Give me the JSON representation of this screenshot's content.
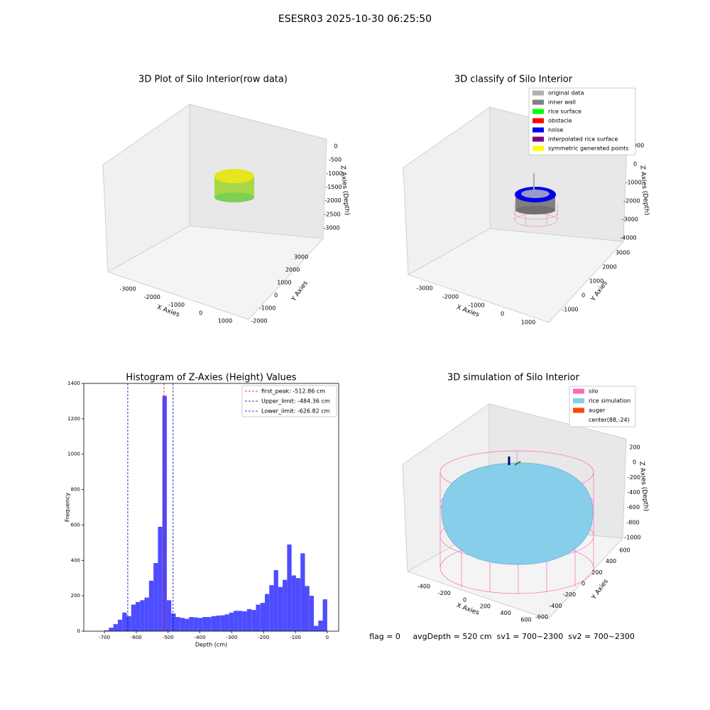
{
  "title": "ESESR03 2025-10-30 06:25:50",
  "chart_data": [
    {
      "type": "scatter3d",
      "title": "3D Plot of Silo Interior(row data)",
      "xlabel": "X Axies",
      "ylabel": "Y Axies",
      "zlabel": "Z Axies (Depth)",
      "xticks": [
        -3000,
        -2000,
        -1000,
        0,
        1000
      ],
      "yticks": [
        -2000,
        -1000,
        0,
        1000,
        2000,
        3000
      ],
      "zticks": [
        0,
        -500,
        -1000,
        -1500,
        -2000,
        -2500,
        -3000
      ]
    },
    {
      "type": "scatter3d",
      "title": "3D classify of Silo Interior",
      "xlabel": "X Axies",
      "ylabel": "Y Axies",
      "zlabel": "Z Axies (Depth)",
      "xticks": [
        -3000,
        -2000,
        -1000,
        0,
        1000
      ],
      "yticks": [
        -1000,
        0,
        1000,
        2000,
        3000
      ],
      "zticks": [
        1000,
        0,
        -1000,
        -2000,
        -3000,
        -4000
      ],
      "legend": [
        {
          "name": "original data",
          "color": "#b0b0b0"
        },
        {
          "name": "inner wall",
          "color": "#808080"
        },
        {
          "name": "rice surface",
          "color": "#00ff00"
        },
        {
          "name": "obstacle",
          "color": "#ff0000"
        },
        {
          "name": "noise",
          "color": "#0000ff"
        },
        {
          "name": "interpolated rice surface",
          "color": "#800080"
        },
        {
          "name": "symmetric generated points",
          "color": "#ffff00"
        }
      ]
    },
    {
      "type": "histogram",
      "title": "Histogram of Z-Axies (Height) Values",
      "xlabel": "Depth (cm)",
      "ylabel": "Frequency",
      "color": "#4d4dff",
      "bins": [
        -700,
        -686,
        -672,
        -658,
        -644,
        -630,
        -616,
        -602,
        -588,
        -574,
        -560,
        -546,
        -532,
        -518,
        -504,
        -490,
        -476,
        -462,
        -448,
        -434,
        -420,
        -406,
        -392,
        -378,
        -364,
        -350,
        -336,
        -322,
        -308,
        -294,
        -280,
        -266,
        -252,
        -238,
        -224,
        -210,
        -196,
        -182,
        -168,
        -154,
        -140,
        -126,
        -112,
        -98,
        -84,
        -70,
        -56,
        -42,
        -28,
        -14,
        0
      ],
      "values": [
        5,
        20,
        40,
        65,
        105,
        85,
        150,
        165,
        175,
        190,
        285,
        385,
        590,
        1330,
        175,
        100,
        80,
        75,
        70,
        80,
        78,
        75,
        80,
        80,
        85,
        88,
        90,
        95,
        105,
        115,
        115,
        112,
        125,
        120,
        150,
        160,
        210,
        260,
        345,
        250,
        290,
        490,
        315,
        300,
        440,
        255,
        200,
        30,
        60,
        180
      ],
      "xlim": [
        -765,
        36
      ],
      "ylim": [
        0,
        1400
      ],
      "xticks": [
        -700,
        -600,
        -500,
        -400,
        -300,
        -200,
        -100,
        0
      ],
      "yticks": [
        0,
        200,
        400,
        600,
        800,
        1000,
        1200,
        1400
      ],
      "vlines": [
        {
          "name": "first_peak: -512.86 cm",
          "value": -512.86,
          "color": "#ff0000"
        },
        {
          "name": "Upper_limit: -484.36 cm",
          "value": -484.36,
          "color": "#0000aa"
        },
        {
          "name": "Lower_limit: -626.82 cm",
          "value": -626.82,
          "color": "#0000aa"
        }
      ]
    },
    {
      "type": "surface3d",
      "title": "3D simulation of Silo Interior",
      "xlabel": "X Axies",
      "ylabel": "Y Axies",
      "zlabel": "Z Axies (Depth)",
      "xticks": [
        -400,
        -200,
        0,
        200,
        400,
        600
      ],
      "yticks": [
        -600,
        -400,
        -200,
        0,
        200,
        400,
        600
      ],
      "zticks": [
        200,
        0,
        -200,
        -400,
        -600,
        -800,
        -1000
      ],
      "legend": [
        {
          "name": "silo",
          "color": "#ff69b4"
        },
        {
          "name": "rice simulation",
          "color": "#87ceeb"
        },
        {
          "name": "auger",
          "color": "#ff4500"
        },
        {
          "name": "center(88,-24)"
        }
      ],
      "annotation": "flag = 0     avgDepth = 520 cm  sv1 = 700~2300  sv2 = 700~2300"
    }
  ]
}
